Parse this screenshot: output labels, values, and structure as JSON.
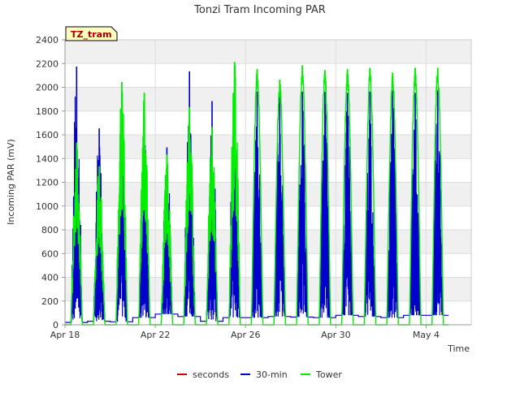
{
  "chart_data": {
    "type": "line",
    "title": "Tonzi Tram Incoming PAR",
    "badge": "TZ_tram",
    "xlabel": "Time",
    "ylabel": "Incoming PAR (mV)",
    "ylim": [
      0,
      2400
    ],
    "yticks": [
      0,
      200,
      400,
      600,
      800,
      1000,
      1200,
      1400,
      1600,
      1800,
      2000,
      2200,
      2400
    ],
    "xlim": [
      "2024-04-18",
      "2024-05-06"
    ],
    "xticks": [
      {
        "date": "2024-04-18",
        "label": "Apr 18"
      },
      {
        "date": "2024-04-22",
        "label": "Apr 22"
      },
      {
        "date": "2024-04-26",
        "label": "Apr 26"
      },
      {
        "date": "2024-04-30",
        "label": "Apr 30"
      },
      {
        "date": "2024-05-04",
        "label": "May 4"
      }
    ],
    "grid": true,
    "legend_position": "bottom",
    "series": [
      {
        "name": "seconds",
        "color": "#cc0000",
        "points": []
      },
      {
        "name": "30-min",
        "color": "#0000cc",
        "daily_peaks": [
          {
            "date": "2024-04-18",
            "peak": 2170
          },
          {
            "date": "2024-04-19",
            "peak": 1650
          },
          {
            "date": "2024-04-20",
            "peak": 1830
          },
          {
            "date": "2024-04-21",
            "peak": 1610
          },
          {
            "date": "2024-04-22",
            "peak": 1490
          },
          {
            "date": "2024-04-23",
            "peak": 2130
          },
          {
            "date": "2024-04-24",
            "peak": 1880
          },
          {
            "date": "2024-04-25",
            "peak": 2180
          },
          {
            "date": "2024-04-26",
            "peak": 1960
          },
          {
            "date": "2024-04-27",
            "peak": 1960
          },
          {
            "date": "2024-04-28",
            "peak": 1960
          },
          {
            "date": "2024-04-29",
            "peak": 1960
          },
          {
            "date": "2024-04-30",
            "peak": 1950
          },
          {
            "date": "2024-05-01",
            "peak": 1960
          },
          {
            "date": "2024-05-02",
            "peak": 1970
          },
          {
            "date": "2024-05-03",
            "peak": 1950
          },
          {
            "date": "2024-05-04",
            "peak": 1970
          }
        ],
        "night_values": [
          {
            "date": "2024-04-18",
            "value": 20
          },
          {
            "date": "2024-04-19",
            "value": 30
          },
          {
            "date": "2024-04-20",
            "value": 25
          },
          {
            "date": "2024-04-21",
            "value": 60
          },
          {
            "date": "2024-04-22",
            "value": 90
          },
          {
            "date": "2024-04-23",
            "value": 70
          },
          {
            "date": "2024-04-24",
            "value": 30
          },
          {
            "date": "2024-04-25",
            "value": 60
          },
          {
            "date": "2024-04-26",
            "value": 60
          },
          {
            "date": "2024-04-27",
            "value": 70
          },
          {
            "date": "2024-04-28",
            "value": 65
          },
          {
            "date": "2024-04-29",
            "value": 60
          },
          {
            "date": "2024-04-30",
            "value": 80
          },
          {
            "date": "2024-05-01",
            "value": 70
          },
          {
            "date": "2024-05-02",
            "value": 60
          },
          {
            "date": "2024-05-03",
            "value": 80
          },
          {
            "date": "2024-05-04",
            "value": 80
          }
        ]
      },
      {
        "name": "Tower",
        "color": "#00ee00",
        "daily_peaks": [
          {
            "date": "2024-04-18",
            "peak": 1530
          },
          {
            "date": "2024-04-19",
            "peak": 1330
          },
          {
            "date": "2024-04-20",
            "peak": 2040
          },
          {
            "date": "2024-04-21",
            "peak": 1950
          },
          {
            "date": "2024-04-22",
            "peak": 1430
          },
          {
            "date": "2024-04-23",
            "peak": 1830
          },
          {
            "date": "2024-04-24",
            "peak": 1660
          },
          {
            "date": "2024-04-25",
            "peak": 2210
          },
          {
            "date": "2024-04-26",
            "peak": 2150
          },
          {
            "date": "2024-04-27",
            "peak": 2060
          },
          {
            "date": "2024-04-28",
            "peak": 2180
          },
          {
            "date": "2024-04-29",
            "peak": 2140
          },
          {
            "date": "2024-04-30",
            "peak": 2150
          },
          {
            "date": "2024-05-01",
            "peak": 2160
          },
          {
            "date": "2024-05-02",
            "peak": 2120
          },
          {
            "date": "2024-05-03",
            "peak": 2160
          },
          {
            "date": "2024-05-04",
            "peak": 2160
          }
        ]
      }
    ]
  }
}
